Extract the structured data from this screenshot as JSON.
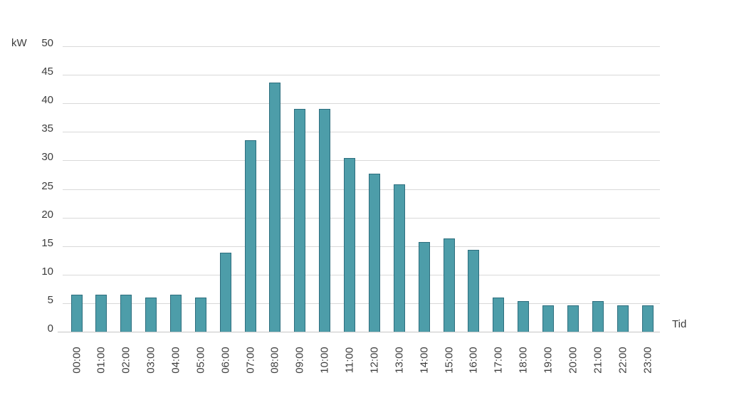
{
  "chart_data": {
    "type": "bar",
    "title": "",
    "ylabel": "kW",
    "xlabel": "Tid",
    "categories": [
      "00:00",
      "01:00",
      "02:00",
      "03:00",
      "04:00",
      "05:00",
      "06:00",
      "07:00",
      "08:00",
      "09:00",
      "10:00",
      "11:00",
      "12:00",
      "13:00",
      "14:00",
      "15:00",
      "16:00",
      "17:00",
      "18:00",
      "19:00",
      "20:00",
      "21:00",
      "22:00",
      "23:00"
    ],
    "values": [
      6.5,
      6.5,
      6.5,
      6.0,
      6.5,
      6.0,
      13.8,
      33.5,
      43.6,
      39.0,
      39.0,
      30.4,
      27.7,
      25.8,
      15.7,
      16.3,
      14.3,
      6.0,
      5.4,
      4.6,
      4.6,
      5.4,
      4.6,
      4.6
    ],
    "ylim": [
      0,
      50
    ],
    "ytick_step": 5,
    "grid": "horizontal-only",
    "legend": "none",
    "colors": {
      "bar_fill": "#4d9da9",
      "bar_border": "#2d6e7e",
      "gridline": "#d9d9d9",
      "axis_baseline": "#c6c6c6",
      "text": "#3c3c3c",
      "background": "#ffffff"
    }
  }
}
